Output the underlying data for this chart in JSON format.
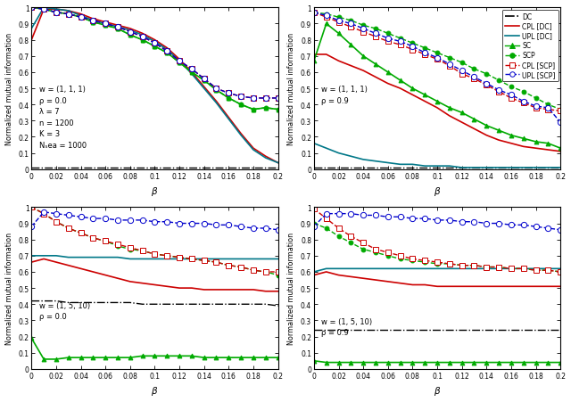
{
  "beta": [
    0,
    0.01,
    0.02,
    0.03,
    0.04,
    0.05,
    0.06,
    0.07,
    0.08,
    0.09,
    0.1,
    0.11,
    0.12,
    0.13,
    0.14,
    0.15,
    0.16,
    0.17,
    0.18,
    0.19,
    0.2
  ],
  "p1_DC": [
    0.01,
    0.01,
    0.01,
    0.01,
    0.01,
    0.01,
    0.01,
    0.01,
    0.01,
    0.01,
    0.01,
    0.01,
    0.01,
    0.01,
    0.01,
    0.01,
    0.01,
    0.01,
    0.01,
    0.01,
    0.01
  ],
  "p1_CPL_DC": [
    0.8,
    0.99,
    0.99,
    0.98,
    0.96,
    0.93,
    0.91,
    0.89,
    0.87,
    0.84,
    0.8,
    0.75,
    0.68,
    0.6,
    0.51,
    0.42,
    0.32,
    0.22,
    0.13,
    0.08,
    0.04
  ],
  "p1_UPL_DC": [
    0.87,
    1.0,
    0.99,
    0.98,
    0.95,
    0.92,
    0.9,
    0.88,
    0.86,
    0.83,
    0.79,
    0.74,
    0.67,
    0.59,
    0.5,
    0.41,
    0.31,
    0.21,
    0.12,
    0.07,
    0.04
  ],
  "p1_SC": [
    1.0,
    0.99,
    0.97,
    0.96,
    0.94,
    0.91,
    0.89,
    0.87,
    0.83,
    0.8,
    0.76,
    0.72,
    0.66,
    0.6,
    0.55,
    0.49,
    0.44,
    0.4,
    0.37,
    0.38,
    0.37
  ],
  "p1_SCP": [
    1.0,
    0.99,
    0.97,
    0.96,
    0.94,
    0.91,
    0.89,
    0.87,
    0.83,
    0.8,
    0.76,
    0.72,
    0.66,
    0.6,
    0.55,
    0.49,
    0.44,
    0.4,
    0.37,
    0.38,
    0.37
  ],
  "p1_CPL_SCP": [
    1.0,
    0.99,
    0.97,
    0.96,
    0.94,
    0.92,
    0.9,
    0.88,
    0.85,
    0.82,
    0.78,
    0.73,
    0.67,
    0.62,
    0.56,
    0.5,
    0.47,
    0.45,
    0.44,
    0.44,
    0.44
  ],
  "p1_UPL_SCP": [
    1.0,
    0.99,
    0.97,
    0.96,
    0.94,
    0.92,
    0.9,
    0.88,
    0.85,
    0.82,
    0.78,
    0.73,
    0.67,
    0.62,
    0.56,
    0.5,
    0.47,
    0.45,
    0.44,
    0.44,
    0.44
  ],
  "p2_DC": [
    0.01,
    0.01,
    0.01,
    0.01,
    0.01,
    0.01,
    0.01,
    0.01,
    0.01,
    0.01,
    0.01,
    0.01,
    0.01,
    0.01,
    0.01,
    0.01,
    0.01,
    0.01,
    0.01,
    0.01,
    0.01
  ],
  "p2_CPL_DC": [
    0.71,
    0.71,
    0.67,
    0.64,
    0.61,
    0.57,
    0.53,
    0.5,
    0.46,
    0.42,
    0.38,
    0.33,
    0.29,
    0.25,
    0.21,
    0.18,
    0.16,
    0.14,
    0.13,
    0.12,
    0.11
  ],
  "p2_UPL_DC": [
    0.16,
    0.13,
    0.1,
    0.08,
    0.06,
    0.05,
    0.04,
    0.03,
    0.03,
    0.02,
    0.02,
    0.02,
    0.01,
    0.01,
    0.01,
    0.01,
    0.01,
    0.01,
    0.01,
    0.01,
    0.01
  ],
  "p2_SC": [
    0.67,
    0.9,
    0.84,
    0.77,
    0.7,
    0.65,
    0.6,
    0.55,
    0.5,
    0.46,
    0.42,
    0.38,
    0.35,
    0.31,
    0.27,
    0.24,
    0.21,
    0.19,
    0.17,
    0.16,
    0.13
  ],
  "p2_SCP": [
    0.97,
    0.96,
    0.94,
    0.92,
    0.89,
    0.87,
    0.84,
    0.81,
    0.78,
    0.75,
    0.72,
    0.69,
    0.66,
    0.62,
    0.59,
    0.55,
    0.51,
    0.48,
    0.44,
    0.4,
    0.37
  ],
  "p2_CPL_SCP": [
    0.97,
    0.94,
    0.91,
    0.88,
    0.85,
    0.82,
    0.79,
    0.77,
    0.74,
    0.71,
    0.68,
    0.64,
    0.59,
    0.56,
    0.52,
    0.48,
    0.44,
    0.41,
    0.38,
    0.37,
    0.36
  ],
  "p2_UPL_SCP": [
    0.97,
    0.95,
    0.92,
    0.9,
    0.87,
    0.84,
    0.81,
    0.79,
    0.76,
    0.72,
    0.69,
    0.65,
    0.61,
    0.57,
    0.53,
    0.49,
    0.46,
    0.42,
    0.39,
    0.38,
    0.29
  ],
  "p3_DC": [
    0.42,
    0.42,
    0.42,
    0.41,
    0.41,
    0.41,
    0.41,
    0.41,
    0.41,
    0.4,
    0.4,
    0.4,
    0.4,
    0.4,
    0.4,
    0.4,
    0.4,
    0.4,
    0.4,
    0.4,
    0.39
  ],
  "p3_CPL_DC": [
    0.66,
    0.68,
    0.66,
    0.64,
    0.62,
    0.6,
    0.58,
    0.56,
    0.54,
    0.53,
    0.52,
    0.51,
    0.5,
    0.5,
    0.49,
    0.49,
    0.49,
    0.49,
    0.49,
    0.48,
    0.48
  ],
  "p3_UPL_DC": [
    0.7,
    0.7,
    0.7,
    0.69,
    0.69,
    0.69,
    0.69,
    0.69,
    0.68,
    0.68,
    0.68,
    0.68,
    0.68,
    0.68,
    0.68,
    0.68,
    0.68,
    0.68,
    0.68,
    0.68,
    0.68
  ],
  "p3_SC": [
    0.19,
    0.06,
    0.06,
    0.07,
    0.07,
    0.07,
    0.07,
    0.07,
    0.07,
    0.08,
    0.08,
    0.08,
    0.08,
    0.08,
    0.07,
    0.07,
    0.07,
    0.07,
    0.07,
    0.07,
    0.07
  ],
  "p3_SCP": [
    1.0,
    0.96,
    0.91,
    0.87,
    0.84,
    0.81,
    0.79,
    0.76,
    0.74,
    0.73,
    0.71,
    0.7,
    0.69,
    0.68,
    0.67,
    0.66,
    0.64,
    0.63,
    0.61,
    0.6,
    0.58
  ],
  "p3_CPL_SCP": [
    1.0,
    0.96,
    0.91,
    0.87,
    0.84,
    0.81,
    0.79,
    0.77,
    0.75,
    0.73,
    0.71,
    0.7,
    0.69,
    0.68,
    0.67,
    0.66,
    0.64,
    0.63,
    0.61,
    0.6,
    0.6
  ],
  "p3_UPL_SCP": [
    0.88,
    0.97,
    0.96,
    0.95,
    0.94,
    0.93,
    0.93,
    0.92,
    0.92,
    0.92,
    0.91,
    0.91,
    0.9,
    0.9,
    0.9,
    0.89,
    0.89,
    0.88,
    0.87,
    0.87,
    0.86
  ],
  "p4_DC": [
    0.24,
    0.24,
    0.24,
    0.24,
    0.24,
    0.24,
    0.24,
    0.24,
    0.24,
    0.24,
    0.24,
    0.24,
    0.24,
    0.24,
    0.24,
    0.24,
    0.24,
    0.24,
    0.24,
    0.24,
    0.24
  ],
  "p4_CPL_DC": [
    0.58,
    0.6,
    0.58,
    0.57,
    0.56,
    0.55,
    0.54,
    0.53,
    0.52,
    0.52,
    0.51,
    0.51,
    0.51,
    0.51,
    0.51,
    0.51,
    0.51,
    0.51,
    0.51,
    0.51,
    0.51
  ],
  "p4_UPL_DC": [
    0.6,
    0.62,
    0.62,
    0.62,
    0.62,
    0.62,
    0.62,
    0.62,
    0.62,
    0.62,
    0.62,
    0.62,
    0.62,
    0.62,
    0.62,
    0.62,
    0.62,
    0.62,
    0.62,
    0.62,
    0.62
  ],
  "p4_SC": [
    0.05,
    0.04,
    0.04,
    0.04,
    0.04,
    0.04,
    0.04,
    0.04,
    0.04,
    0.04,
    0.04,
    0.04,
    0.04,
    0.04,
    0.04,
    0.04,
    0.04,
    0.04,
    0.04,
    0.04,
    0.04
  ],
  "p4_SCP": [
    0.9,
    0.87,
    0.82,
    0.78,
    0.74,
    0.72,
    0.7,
    0.68,
    0.67,
    0.66,
    0.65,
    0.65,
    0.64,
    0.64,
    0.63,
    0.63,
    0.62,
    0.62,
    0.61,
    0.61,
    0.6
  ],
  "p4_CPL_SCP": [
    0.99,
    0.93,
    0.87,
    0.82,
    0.78,
    0.74,
    0.72,
    0.7,
    0.68,
    0.67,
    0.66,
    0.65,
    0.64,
    0.64,
    0.63,
    0.63,
    0.62,
    0.62,
    0.61,
    0.61,
    0.6
  ],
  "p4_UPL_SCP": [
    0.88,
    0.96,
    0.96,
    0.96,
    0.95,
    0.95,
    0.94,
    0.94,
    0.93,
    0.93,
    0.92,
    0.92,
    0.91,
    0.91,
    0.9,
    0.9,
    0.89,
    0.89,
    0.88,
    0.87,
    0.86
  ],
  "color_DC": "#000000",
  "color_CPL_DC": "#cc0000",
  "color_UPL_DC": "#007788",
  "color_SC": "#00aa00",
  "color_SCP": "#00aa00",
  "color_CPL_SCP": "#cc0000",
  "color_UPL_SCP": "#0000cc"
}
